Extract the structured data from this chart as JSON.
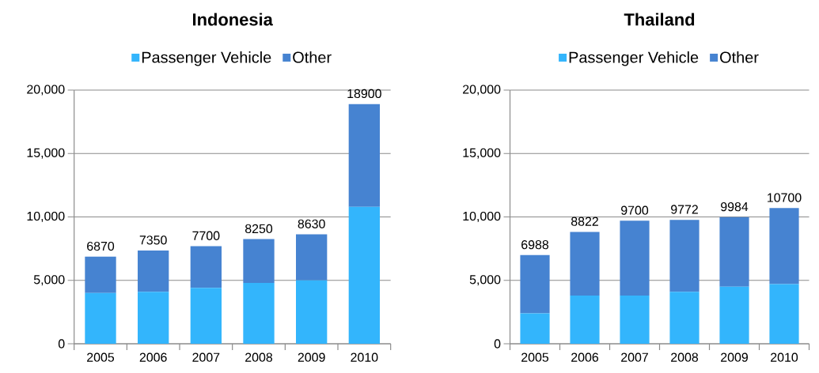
{
  "chart_data": [
    {
      "type": "bar",
      "title": "Indonesia",
      "stacked": true,
      "categories": [
        "2005",
        "2006",
        "2007",
        "2008",
        "2009",
        "2010"
      ],
      "series": [
        {
          "name": "Passenger Vehicle",
          "color": "#33b5fc",
          "values": [
            4000,
            4100,
            4400,
            4800,
            5000,
            10800
          ]
        },
        {
          "name": "Other",
          "color": "#4683d1",
          "values": [
            2870,
            3250,
            3300,
            3450,
            3630,
            8100
          ]
        }
      ],
      "totals": [
        "6870",
        "7350",
        "7700",
        "8250",
        "8630",
        "18900"
      ],
      "ylim": [
        0,
        20000
      ],
      "yticks": [
        0,
        {
          "value": 5000,
          "label": "5,000"
        },
        {
          "value": 10000,
          "label": "10,000"
        },
        {
          "value": 15000,
          "label": "15,000"
        },
        {
          "value": 20000,
          "label": "20,000"
        }
      ],
      "grid": "y",
      "legend": "top"
    },
    {
      "type": "bar",
      "title": "Thailand",
      "stacked": true,
      "categories": [
        "2005",
        "2006",
        "2007",
        "2008",
        "2009",
        "2010"
      ],
      "series": [
        {
          "name": "Passenger Vehicle",
          "color": "#33b5fc",
          "values": [
            2400,
            3800,
            3800,
            4100,
            4500,
            4700
          ]
        },
        {
          "name": "Other",
          "color": "#4683d1",
          "values": [
            4588,
            5022,
            5900,
            5672,
            5484,
            6000
          ]
        }
      ],
      "totals": [
        "6988",
        "8822",
        "9700",
        "9772",
        "9984",
        "10700"
      ],
      "ylim": [
        0,
        20000
      ],
      "yticks": [
        0,
        {
          "value": 5000,
          "label": "5,000"
        },
        {
          "value": 10000,
          "label": "10,000"
        },
        {
          "value": 15000,
          "label": "15,000"
        },
        {
          "value": 20000,
          "label": "20,000"
        }
      ],
      "grid": "y",
      "legend": "top"
    }
  ]
}
